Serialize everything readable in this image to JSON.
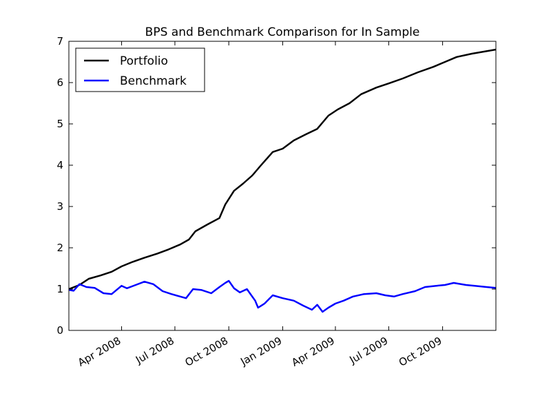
{
  "chart_data": {
    "type": "line",
    "title": "BPS and Benchmark Comparison for In Sample",
    "xlabel": "",
    "ylabel": "",
    "x_range": [
      "2008-01-02",
      "2009-12-31"
    ],
    "ylim": [
      0,
      7
    ],
    "y_ticks": [
      0,
      1,
      2,
      3,
      4,
      5,
      6,
      7
    ],
    "x_ticks": [
      {
        "date": "2008-04-01",
        "label": "Apr 2008"
      },
      {
        "date": "2008-07-01",
        "label": "Jul 2008"
      },
      {
        "date": "2008-10-01",
        "label": "Oct 2008"
      },
      {
        "date": "2009-01-01",
        "label": "Jan 2009"
      },
      {
        "date": "2009-04-01",
        "label": "Apr 2009"
      },
      {
        "date": "2009-07-01",
        "label": "Jul 2009"
      },
      {
        "date": "2009-10-01",
        "label": "Oct 2009"
      }
    ],
    "grid": false,
    "legend_position": "top-left",
    "series": [
      {
        "name": "Portfolio",
        "color": "#000000",
        "points": [
          [
            "2008-01-02",
            1.0
          ],
          [
            "2008-01-20",
            1.1
          ],
          [
            "2008-02-05",
            1.25
          ],
          [
            "2008-02-25",
            1.33
          ],
          [
            "2008-03-15",
            1.42
          ],
          [
            "2008-04-01",
            1.55
          ],
          [
            "2008-04-20",
            1.66
          ],
          [
            "2008-05-10",
            1.76
          ],
          [
            "2008-06-01",
            1.86
          ],
          [
            "2008-06-20",
            1.96
          ],
          [
            "2008-07-10",
            2.08
          ],
          [
            "2008-07-25",
            2.2
          ],
          [
            "2008-08-05",
            2.4
          ],
          [
            "2008-08-25",
            2.56
          ],
          [
            "2008-09-15",
            2.72
          ],
          [
            "2008-09-25",
            3.05
          ],
          [
            "2008-10-10",
            3.38
          ],
          [
            "2008-10-25",
            3.55
          ],
          [
            "2008-11-10",
            3.75
          ],
          [
            "2008-11-25",
            4.0
          ],
          [
            "2008-12-15",
            4.32
          ],
          [
            "2009-01-01",
            4.4
          ],
          [
            "2009-01-20",
            4.6
          ],
          [
            "2009-02-10",
            4.75
          ],
          [
            "2009-03-01",
            4.88
          ],
          [
            "2009-03-20",
            5.2
          ],
          [
            "2009-04-05",
            5.35
          ],
          [
            "2009-04-25",
            5.5
          ],
          [
            "2009-05-15",
            5.72
          ],
          [
            "2009-06-10",
            5.88
          ],
          [
            "2009-07-01",
            5.98
          ],
          [
            "2009-07-25",
            6.1
          ],
          [
            "2009-08-20",
            6.25
          ],
          [
            "2009-09-15",
            6.38
          ],
          [
            "2009-10-05",
            6.5
          ],
          [
            "2009-10-25",
            6.62
          ],
          [
            "2009-11-20",
            6.7
          ],
          [
            "2009-12-31",
            6.8
          ]
        ]
      },
      {
        "name": "Benchmark",
        "color": "#0000ff",
        "points": [
          [
            "2008-01-02",
            0.98
          ],
          [
            "2008-01-10",
            0.96
          ],
          [
            "2008-01-20",
            1.12
          ],
          [
            "2008-02-01",
            1.05
          ],
          [
            "2008-02-15",
            1.03
          ],
          [
            "2008-03-01",
            0.9
          ],
          [
            "2008-03-15",
            0.88
          ],
          [
            "2008-04-01",
            1.08
          ],
          [
            "2008-04-10",
            1.02
          ],
          [
            "2008-04-25",
            1.1
          ],
          [
            "2008-05-10",
            1.18
          ],
          [
            "2008-05-25",
            1.12
          ],
          [
            "2008-06-10",
            0.95
          ],
          [
            "2008-06-25",
            0.88
          ],
          [
            "2008-07-10",
            0.82
          ],
          [
            "2008-07-20",
            0.78
          ],
          [
            "2008-08-01",
            1.0
          ],
          [
            "2008-08-15",
            0.98
          ],
          [
            "2008-09-01",
            0.9
          ],
          [
            "2008-09-15",
            1.05
          ],
          [
            "2008-09-25",
            1.15
          ],
          [
            "2008-10-01",
            1.2
          ],
          [
            "2008-10-10",
            1.02
          ],
          [
            "2008-10-20",
            0.92
          ],
          [
            "2008-11-01",
            1.0
          ],
          [
            "2008-11-15",
            0.72
          ],
          [
            "2008-11-20",
            0.55
          ],
          [
            "2008-12-01",
            0.65
          ],
          [
            "2008-12-15",
            0.85
          ],
          [
            "2009-01-01",
            0.78
          ],
          [
            "2009-01-20",
            0.72
          ],
          [
            "2009-02-05",
            0.6
          ],
          [
            "2009-02-20",
            0.5
          ],
          [
            "2009-03-01",
            0.62
          ],
          [
            "2009-03-10",
            0.45
          ],
          [
            "2009-03-20",
            0.55
          ],
          [
            "2009-04-01",
            0.65
          ],
          [
            "2009-04-15",
            0.72
          ],
          [
            "2009-05-01",
            0.82
          ],
          [
            "2009-05-20",
            0.88
          ],
          [
            "2009-06-10",
            0.9
          ],
          [
            "2009-06-25",
            0.85
          ],
          [
            "2009-07-10",
            0.82
          ],
          [
            "2009-07-25",
            0.88
          ],
          [
            "2009-08-15",
            0.95
          ],
          [
            "2009-09-01",
            1.05
          ],
          [
            "2009-09-20",
            1.08
          ],
          [
            "2009-10-05",
            1.1
          ],
          [
            "2009-10-20",
            1.15
          ],
          [
            "2009-11-10",
            1.1
          ],
          [
            "2009-11-25",
            1.08
          ],
          [
            "2009-12-15",
            1.05
          ],
          [
            "2009-12-31",
            1.03
          ]
        ]
      }
    ]
  }
}
